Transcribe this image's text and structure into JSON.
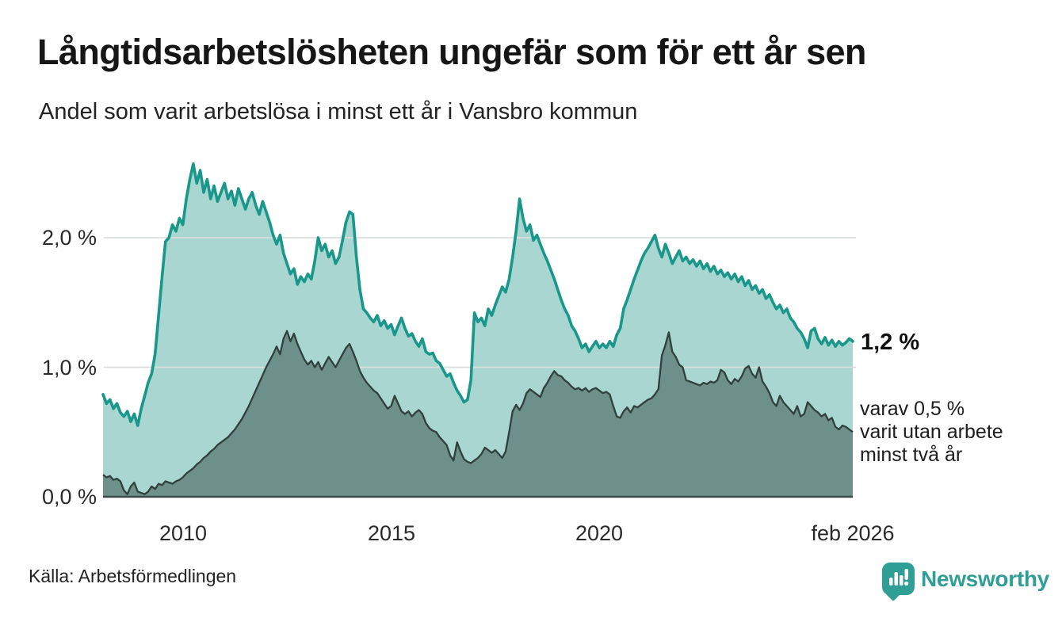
{
  "header": {
    "title": "Långtidsarbetslösheten ungefär som för ett år sen",
    "subtitle": "Andel som varit arbetslösa i minst ett år i Vansbro kommun"
  },
  "chart_data": {
    "type": "area",
    "unit": "%",
    "grid": "horizontal",
    "legend_position": "annotations-right",
    "ylim": [
      0,
      2.65
    ],
    "y_ticks": [
      {
        "label": "0,0 %",
        "value": 0
      },
      {
        "label": "1,0 %",
        "value": 1
      },
      {
        "label": "2,0 %",
        "value": 2
      }
    ],
    "x_ticks": [
      {
        "label": "2010",
        "month": 23
      },
      {
        "label": "2015",
        "month": 83
      },
      {
        "label": "2020",
        "month": 143
      },
      {
        "label": "feb 2026",
        "month": 216
      }
    ],
    "series": [
      {
        "name": "Andel arbetslösa minst ett år",
        "latest_label": "1,2 %",
        "line_color": "#19978b",
        "fill_color": "#a9d6d0",
        "values": [
          0.79,
          0.72,
          0.75,
          0.68,
          0.72,
          0.65,
          0.62,
          0.66,
          0.58,
          0.64,
          0.55,
          0.68,
          0.78,
          0.88,
          0.95,
          1.1,
          1.4,
          1.7,
          1.97,
          2.0,
          2.1,
          2.05,
          2.15,
          2.1,
          2.3,
          2.45,
          2.57,
          2.42,
          2.52,
          2.35,
          2.45,
          2.3,
          2.4,
          2.28,
          2.35,
          2.42,
          2.3,
          2.36,
          2.25,
          2.38,
          2.3,
          2.22,
          2.3,
          2.35,
          2.25,
          2.18,
          2.28,
          2.2,
          2.12,
          2.02,
          1.95,
          2.02,
          1.88,
          1.8,
          1.72,
          1.76,
          1.64,
          1.7,
          1.66,
          1.72,
          1.68,
          1.82,
          2.0,
          1.9,
          1.95,
          1.85,
          1.9,
          1.8,
          1.85,
          1.98,
          2.12,
          2.2,
          2.18,
          1.85,
          1.6,
          1.45,
          1.42,
          1.38,
          1.35,
          1.4,
          1.32,
          1.36,
          1.3,
          1.33,
          1.25,
          1.32,
          1.38,
          1.3,
          1.24,
          1.26,
          1.2,
          1.16,
          1.22,
          1.12,
          1.1,
          1.11,
          1.05,
          1.03,
          0.98,
          0.93,
          0.95,
          0.88,
          0.82,
          0.78,
          0.73,
          0.75,
          0.9,
          1.42,
          1.35,
          1.38,
          1.32,
          1.45,
          1.4,
          1.48,
          1.55,
          1.62,
          1.58,
          1.68,
          1.85,
          2.05,
          2.3,
          2.15,
          2.05,
          2.1,
          1.98,
          2.02,
          1.95,
          1.88,
          1.82,
          1.75,
          1.68,
          1.6,
          1.52,
          1.45,
          1.4,
          1.32,
          1.28,
          1.22,
          1.15,
          1.18,
          1.12,
          1.16,
          1.2,
          1.15,
          1.18,
          1.15,
          1.2,
          1.16,
          1.25,
          1.3,
          1.45,
          1.52,
          1.6,
          1.68,
          1.75,
          1.82,
          1.88,
          1.92,
          1.97,
          2.02,
          1.92,
          1.85,
          1.95,
          1.88,
          1.8,
          1.85,
          1.9,
          1.82,
          1.85,
          1.8,
          1.83,
          1.78,
          1.82,
          1.76,
          1.8,
          1.74,
          1.78,
          1.72,
          1.75,
          1.7,
          1.73,
          1.68,
          1.72,
          1.66,
          1.7,
          1.63,
          1.67,
          1.6,
          1.63,
          1.57,
          1.6,
          1.53,
          1.56,
          1.5,
          1.45,
          1.48,
          1.42,
          1.45,
          1.38,
          1.35,
          1.3,
          1.27,
          1.22,
          1.15,
          1.28,
          1.3,
          1.22,
          1.18,
          1.23,
          1.17,
          1.21,
          1.16,
          1.2,
          1.17,
          1.19,
          1.22,
          1.2
        ]
      },
      {
        "name": "varav utan arbete minst två år",
        "latest_label": "0,5 %",
        "line_color": "#2f403d",
        "fill_color": "#6d908a",
        "values": [
          0.17,
          0.15,
          0.16,
          0.13,
          0.14,
          0.12,
          0.05,
          0.02,
          0.08,
          0.11,
          0.04,
          0.03,
          0.02,
          0.04,
          0.08,
          0.06,
          0.1,
          0.09,
          0.12,
          0.11,
          0.1,
          0.12,
          0.13,
          0.15,
          0.18,
          0.2,
          0.22,
          0.25,
          0.27,
          0.3,
          0.32,
          0.35,
          0.37,
          0.4,
          0.42,
          0.44,
          0.46,
          0.49,
          0.52,
          0.56,
          0.6,
          0.65,
          0.7,
          0.76,
          0.82,
          0.88,
          0.94,
          1.0,
          1.05,
          1.1,
          1.16,
          1.1,
          1.22,
          1.28,
          1.2,
          1.26,
          1.18,
          1.12,
          1.06,
          1.02,
          1.05,
          1.0,
          1.04,
          0.98,
          1.03,
          1.08,
          1.04,
          1.0,
          1.05,
          1.1,
          1.15,
          1.18,
          1.12,
          1.05,
          0.97,
          0.92,
          0.88,
          0.85,
          0.82,
          0.8,
          0.76,
          0.72,
          0.68,
          0.7,
          0.78,
          0.72,
          0.66,
          0.64,
          0.66,
          0.62,
          0.65,
          0.67,
          0.64,
          0.57,
          0.53,
          0.51,
          0.5,
          0.46,
          0.43,
          0.4,
          0.32,
          0.28,
          0.42,
          0.35,
          0.29,
          0.27,
          0.26,
          0.28,
          0.3,
          0.33,
          0.38,
          0.36,
          0.34,
          0.36,
          0.33,
          0.3,
          0.35,
          0.5,
          0.66,
          0.71,
          0.67,
          0.72,
          0.8,
          0.83,
          0.81,
          0.79,
          0.77,
          0.84,
          0.88,
          0.93,
          0.97,
          0.94,
          0.93,
          0.9,
          0.88,
          0.85,
          0.83,
          0.84,
          0.82,
          0.84,
          0.81,
          0.83,
          0.84,
          0.82,
          0.8,
          0.81,
          0.79,
          0.7,
          0.62,
          0.61,
          0.66,
          0.69,
          0.65,
          0.7,
          0.69,
          0.71,
          0.73,
          0.75,
          0.76,
          0.79,
          0.83,
          1.09,
          1.17,
          1.27,
          1.12,
          1.08,
          1.02,
          1.0,
          0.9,
          0.89,
          0.88,
          0.87,
          0.86,
          0.88,
          0.87,
          0.89,
          0.88,
          0.9,
          0.98,
          0.96,
          0.9,
          0.87,
          0.91,
          0.89,
          0.93,
          0.99,
          1.01,
          0.95,
          0.92,
          1.0,
          0.89,
          0.85,
          0.8,
          0.73,
          0.7,
          0.78,
          0.73,
          0.7,
          0.67,
          0.64,
          0.7,
          0.62,
          0.64,
          0.73,
          0.7,
          0.67,
          0.65,
          0.62,
          0.64,
          0.59,
          0.61,
          0.54,
          0.52,
          0.55,
          0.54,
          0.52,
          0.5
        ]
      }
    ]
  },
  "annotations": {
    "latest_value": "1,2 %",
    "secondary_lines": [
      "varav 0,5 %",
      "varit utan arbete",
      "minst två år"
    ]
  },
  "footer": {
    "source": "Källa: Arbetsförmedlingen",
    "logo_text": "Newsworthy"
  },
  "colors": {
    "accent_teal": "#19978b",
    "fill_light": "#a9d6d0",
    "fill_dark": "#6d908a",
    "dark_line": "#2f403d",
    "baseline": "#3b4c48",
    "gridline": "#dadedd",
    "logo_teal": "#2f9e94"
  }
}
